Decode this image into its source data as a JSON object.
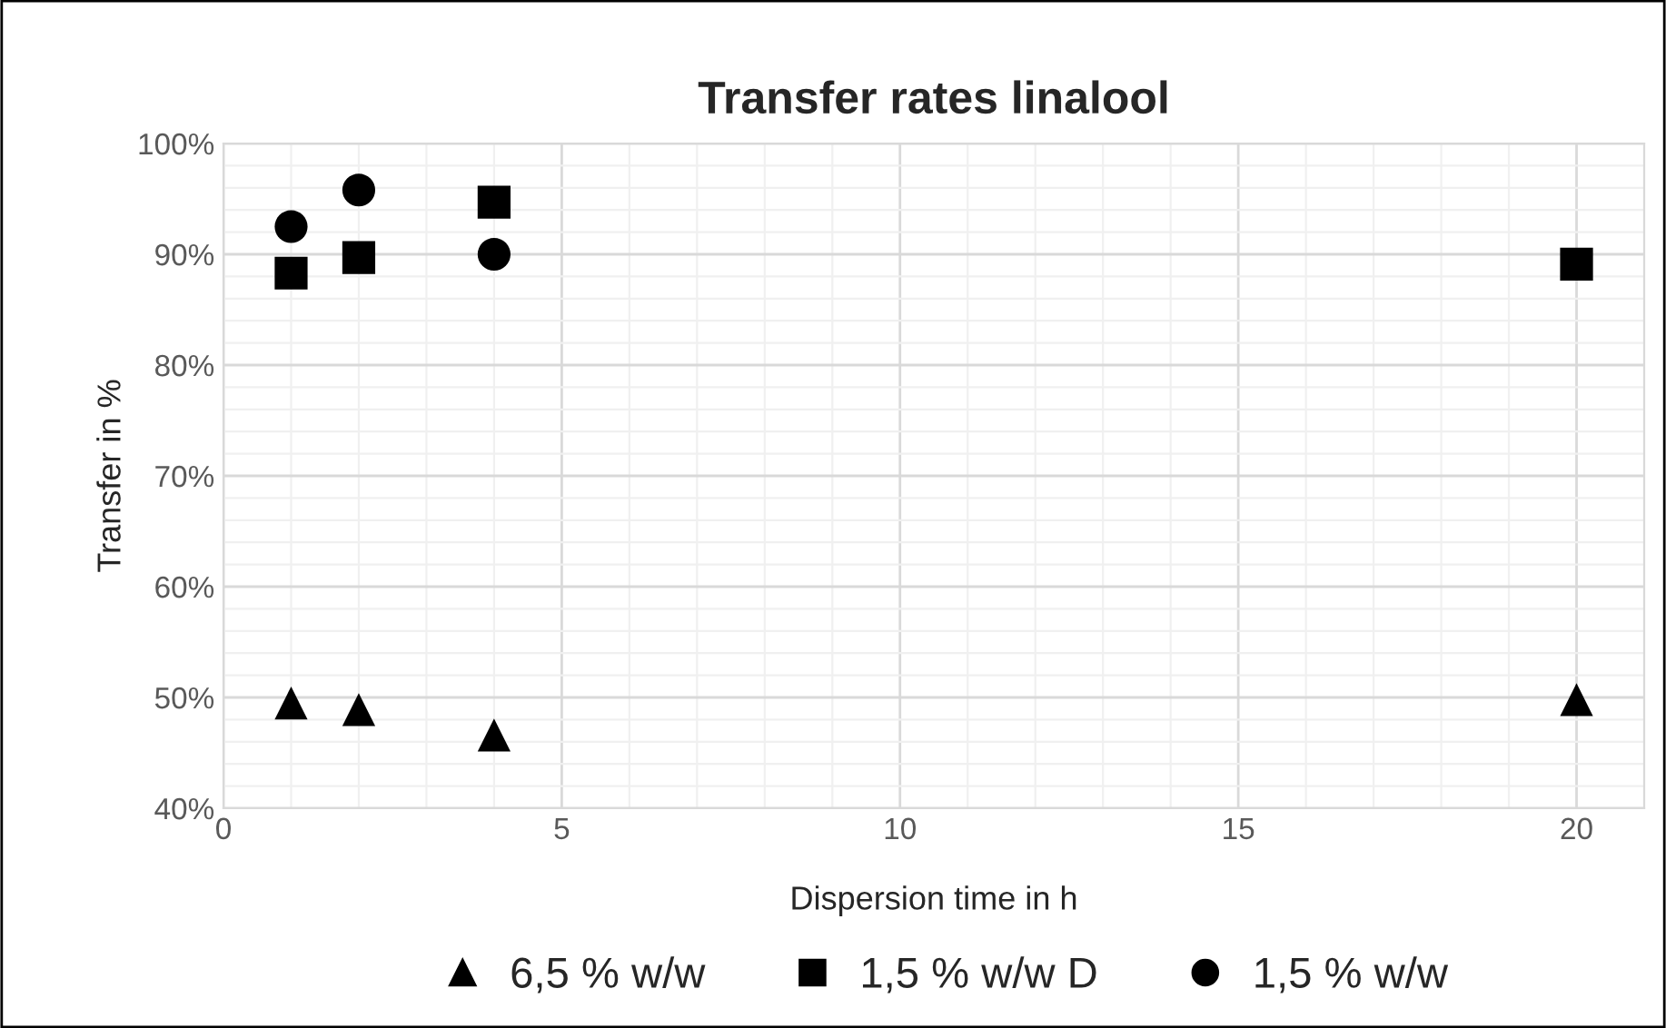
{
  "chart_data": {
    "type": "scatter",
    "title": "Transfer rates linalool",
    "xlabel": "Dispersion time in h",
    "ylabel": "Transfer in %",
    "series": [
      {
        "name": "6,5 % w/w",
        "color": "#000000",
        "marker": "triangle",
        "x": [
          1,
          2,
          4,
          20
        ],
        "values": [
          49.5,
          48.9,
          46.6,
          49.8
        ]
      },
      {
        "name": "1,5 % w/w D",
        "color": "#000000",
        "marker": "square",
        "x": [
          1,
          2,
          4,
          20
        ],
        "values": [
          88.3,
          89.7,
          94.7,
          89.1
        ]
      },
      {
        "name": "1,5 % w/w",
        "color": "#000000",
        "marker": "circle",
        "x": [
          1,
          2,
          4
        ],
        "values": [
          92.5,
          95.8,
          90.0
        ]
      }
    ],
    "xlim": [
      0,
      21
    ],
    "xticks": [
      0,
      5,
      10,
      15,
      20
    ],
    "ylim": [
      40,
      100
    ],
    "yticks": [
      {
        "value": 40,
        "label": "40%"
      },
      {
        "value": 50,
        "label": "50%"
      },
      {
        "value": 60,
        "label": "60%"
      },
      {
        "value": 70,
        "label": "70%"
      },
      {
        "value": 80,
        "label": "80%"
      },
      {
        "value": 90,
        "label": "90%"
      },
      {
        "value": 100,
        "label": "100%"
      }
    ],
    "grid": true,
    "legend": "bottom"
  }
}
